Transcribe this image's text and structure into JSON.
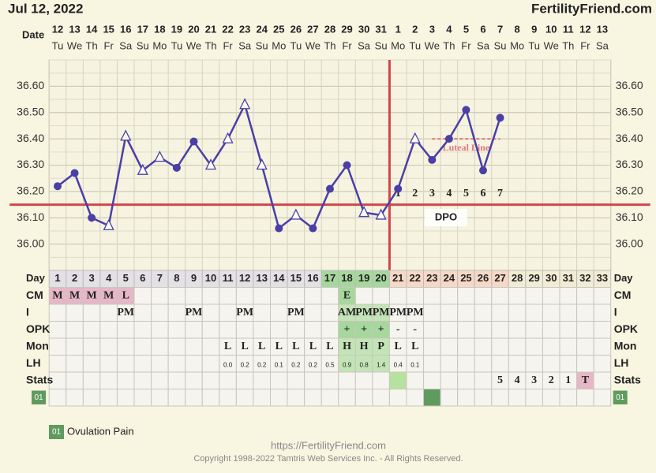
{
  "header": {
    "date": "Jul 12, 2022",
    "site": "FertilityFriend.com",
    "date_label": "Date"
  },
  "chart_data": {
    "type": "line",
    "categories": [
      1,
      2,
      3,
      4,
      5,
      6,
      7,
      8,
      9,
      10,
      11,
      12,
      13,
      14,
      15,
      16,
      17,
      18,
      19,
      20,
      21,
      22,
      23,
      24,
      25,
      26,
      27,
      28,
      29,
      30,
      31,
      32,
      33
    ],
    "dates": [
      12,
      13,
      14,
      15,
      16,
      17,
      18,
      19,
      20,
      21,
      22,
      23,
      24,
      25,
      26,
      27,
      28,
      29,
      30,
      31,
      1,
      2,
      3,
      4,
      5,
      6,
      7,
      8,
      9,
      10,
      11,
      12,
      13
    ],
    "weekdays": [
      "Tu",
      "We",
      "Th",
      "Fr",
      "Sa",
      "Su",
      "Mo",
      "Tu",
      "We",
      "Th",
      "Fr",
      "Sa",
      "Su",
      "Mo",
      "Tu",
      "We",
      "Th",
      "Fr",
      "Sa",
      "Su",
      "Mo",
      "Tu",
      "We",
      "Th",
      "Fr",
      "Sa",
      "Su",
      "Mo",
      "Tu",
      "We",
      "Th",
      "Fr",
      "Sa"
    ],
    "series": [
      {
        "color": "#4a3fa6",
        "values": [
          36.22,
          36.27,
          36.1,
          36.07,
          36.41,
          36.28,
          36.33,
          36.29,
          36.39,
          36.3,
          36.4,
          36.53,
          36.3,
          36.06,
          36.11,
          36.06,
          36.21,
          36.3,
          36.12,
          36.11,
          36.21,
          36.4,
          36.32,
          36.4,
          36.51,
          36.28,
          36.48,
          null,
          null,
          null,
          null,
          null,
          null
        ],
        "markers": [
          "circle",
          "circle",
          "circle",
          "triangle",
          "triangle",
          "triangle",
          "triangle",
          "circle",
          "circle",
          "triangle",
          "triangle",
          "triangle",
          "triangle",
          "circle",
          "triangle",
          "circle",
          "circle",
          "circle",
          "triangle",
          "triangle",
          "circle",
          "triangle",
          "circle",
          "circle",
          "circle",
          "circle",
          "circle",
          null,
          null,
          null,
          null,
          null,
          null
        ]
      }
    ],
    "ylim": [
      35.9,
      36.7
    ],
    "yticks": [
      {
        "value": 36.0,
        "label": "36.00"
      },
      {
        "value": 36.1,
        "label": "36.10"
      },
      {
        "value": 36.2,
        "label": "36.20"
      },
      {
        "value": 36.3,
        "label": "36.30"
      },
      {
        "value": 36.4,
        "label": "36.40"
      },
      {
        "value": 36.5,
        "label": "36.50"
      },
      {
        "value": 36.6,
        "label": "36.60"
      }
    ],
    "grid": true,
    "coverline": 36.15,
    "coverline_color": "#d0474a",
    "ovulation_day": 20,
    "luteal_line": {
      "label": "Luteal Line",
      "value": 36.4,
      "from": 23,
      "to": 27,
      "color": "#e0787f"
    },
    "dpo": {
      "label": "DPO",
      "numbers": {
        "20": 1,
        "21": 2,
        "22": 3,
        "23": 4,
        "24": 5,
        "25": 6,
        "26": 7
      }
    }
  },
  "table": {
    "day_label": "Day",
    "phase_colors": [
      [
        1,
        16,
        "#e3e0e6"
      ],
      [
        17,
        20,
        "#a6d79d"
      ],
      [
        21,
        27,
        "#f6d8c7"
      ],
      [
        28,
        33,
        "#f1edd5"
      ]
    ],
    "rows": [
      {
        "label": "CM",
        "cells": {
          "0": "M",
          "1": "M",
          "2": "M",
          "3": "M",
          "4": "L",
          "17": "E"
        },
        "fills": {
          "0": "#e6b7c7",
          "1": "#e6b7c7",
          "2": "#e6b7c7",
          "3": "#e6b7c7",
          "4": "#e6b7c7",
          "17": "#a6d79d"
        }
      },
      {
        "label": "I",
        "cells": {
          "4": "PM",
          "8": "PM",
          "11": "PM",
          "14": "PM",
          "17": "AM",
          "18": "PM",
          "19": "PM",
          "20": "PM",
          "21": "PM"
        },
        "fills": {
          "17": "#c2e4b6",
          "18": "#c2e4b6",
          "19": "#c2e4b6"
        }
      },
      {
        "label": "OPK",
        "cells": {
          "17": "+",
          "18": "+",
          "19": "+",
          "20": "-",
          "21": "-"
        },
        "fills": {
          "17": "#a6d79d",
          "18": "#a6d79d",
          "19": "#a6d79d"
        }
      },
      {
        "label": "Mon",
        "cells": {
          "10": "L",
          "11": "L",
          "12": "L",
          "13": "L",
          "14": "L",
          "15": "L",
          "16": "L",
          "17": "H",
          "18": "H",
          "19": "P",
          "20": "L",
          "21": "L"
        },
        "fills": {
          "17": "#c2e4b6",
          "18": "#c2e4b6",
          "19": "#c2e4b6"
        }
      },
      {
        "label": "LH",
        "small": true,
        "cells": {
          "10": "0.0",
          "11": "0.2",
          "12": "0.2",
          "13": "0.1",
          "14": "0.2",
          "15": "0.2",
          "16": "0.5",
          "17": "0.9",
          "18": "0.8",
          "19": "1.4",
          "20": "0.4",
          "21": "0.1"
        },
        "fills": {
          "17": "#c2e4b6",
          "18": "#c2e4b6",
          "19": "#c2e4b6"
        }
      },
      {
        "label": "Stats",
        "cells": {
          "26": 5,
          "27": 4,
          "28": 3,
          "29": 2,
          "30": 1,
          "31": "T"
        },
        "fills": {
          "20": "#b6e29f",
          "31": "#e6b7c7"
        }
      }
    ],
    "custom": {
      "label": "01",
      "legend": "Ovulation Pain",
      "color": "#5f9b5e",
      "fills": {
        "22": "#5f9b5e"
      }
    }
  },
  "footer": {
    "url": "https://FertilityFriend.com",
    "copyright": "Copyright 1998-2022 Tamtris Web Services Inc. - All Rights Reserved."
  }
}
